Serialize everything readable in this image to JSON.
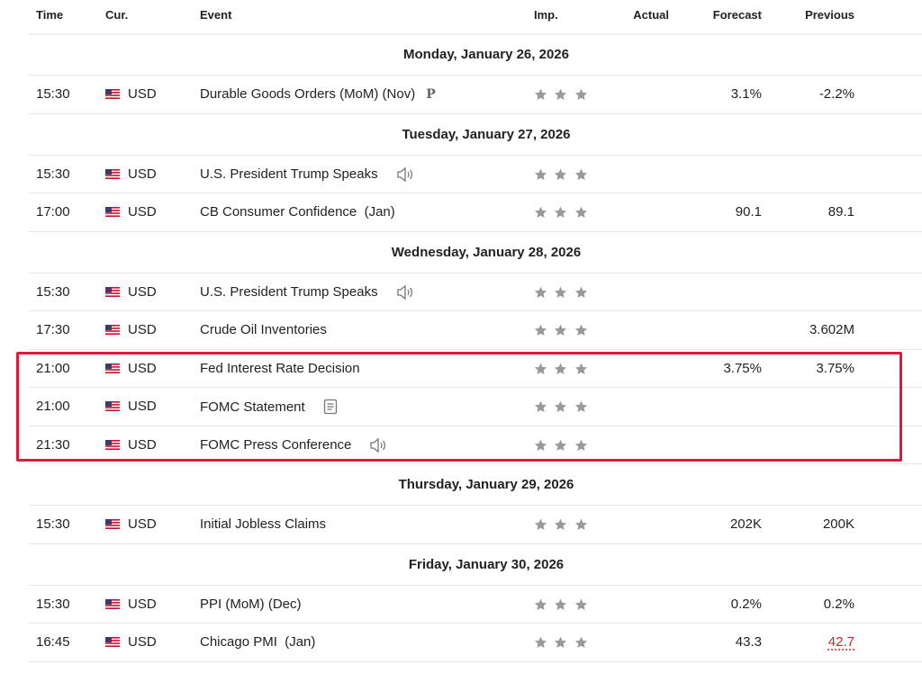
{
  "header": {
    "columns": [
      "Time",
      "Cur.",
      "Event",
      "Imp.",
      "Actual",
      "Forecast",
      "Previous"
    ]
  },
  "days": [
    {
      "date": "Monday, January 26, 2026",
      "rows": [
        {
          "time": "15:30",
          "currency": "USD",
          "event": "Durable Goods Orders (MoM) (Nov)",
          "badge": "P",
          "forecast": "3.1%",
          "previous": "-2.2%"
        }
      ]
    },
    {
      "date": "Tuesday, January 27, 2026",
      "rows": [
        {
          "time": "15:30",
          "currency": "USD",
          "event": "U.S. President Trump Speaks"
        },
        {
          "time": "17:00",
          "currency": "USD",
          "event": "CB Consumer Confidence  (Jan)",
          "forecast": "90.1",
          "previous": "89.1"
        }
      ]
    },
    {
      "date": "Wednesday, January 28, 2026",
      "rows": [
        {
          "time": "15:30",
          "currency": "USD",
          "event": "U.S. President Trump Speaks"
        },
        {
          "time": "17:30",
          "currency": "USD",
          "event": "Crude Oil Inventories",
          "previous": "3.602M"
        },
        {
          "time": "21:00",
          "currency": "USD",
          "event": "Fed Interest Rate Decision",
          "forecast": "3.75%",
          "previous": "3.75%"
        },
        {
          "time": "21:00",
          "currency": "USD",
          "event": "FOMC Statement"
        },
        {
          "time": "21:30",
          "currency": "USD",
          "event": "FOMC Press Conference"
        }
      ]
    },
    {
      "date": "Thursday, January 29, 2026",
      "rows": [
        {
          "time": "15:30",
          "currency": "USD",
          "event": "Initial Jobless Claims",
          "forecast": "202K",
          "previous": "200K"
        }
      ]
    },
    {
      "date": "Friday, January 30, 2026",
      "rows": [
        {
          "time": "15:30",
          "currency": "USD",
          "event": "PPI (MoM) (Dec)",
          "forecast": "0.2%",
          "previous": "0.2%"
        },
        {
          "time": "16:45",
          "currency": "USD",
          "event": "Chicago PMI  (Jan)",
          "forecast": "43.3",
          "previous": "42.7"
        }
      ]
    }
  ]
}
